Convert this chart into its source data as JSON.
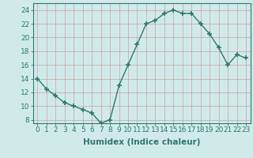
{
  "x": [
    0,
    1,
    2,
    3,
    4,
    5,
    6,
    7,
    8,
    9,
    10,
    11,
    12,
    13,
    14,
    15,
    16,
    17,
    18,
    19,
    20,
    21,
    22,
    23
  ],
  "y": [
    14,
    12.5,
    11.5,
    10.5,
    10,
    9.5,
    9,
    7.5,
    8,
    13,
    16,
    19,
    22,
    22.5,
    23.5,
    24,
    23.5,
    23.5,
    22,
    20.5,
    18.5,
    16,
    17.5,
    17
  ],
  "line_color": "#2d7a6b",
  "marker_color": "#2d7a6b",
  "bg_color": "#d0eaea",
  "grid_color": "#b0d4d4",
  "xlabel": "Humidex (Indice chaleur)",
  "xlabel_fontsize": 7.5,
  "tick_fontsize": 6.5,
  "ylim": [
    7.5,
    25
  ],
  "xlim": [
    -0.5,
    23.5
  ],
  "yticks": [
    8,
    10,
    12,
    14,
    16,
    18,
    20,
    22,
    24
  ],
  "xticks": [
    0,
    1,
    2,
    3,
    4,
    5,
    6,
    7,
    8,
    9,
    10,
    11,
    12,
    13,
    14,
    15,
    16,
    17,
    18,
    19,
    20,
    21,
    22,
    23
  ]
}
